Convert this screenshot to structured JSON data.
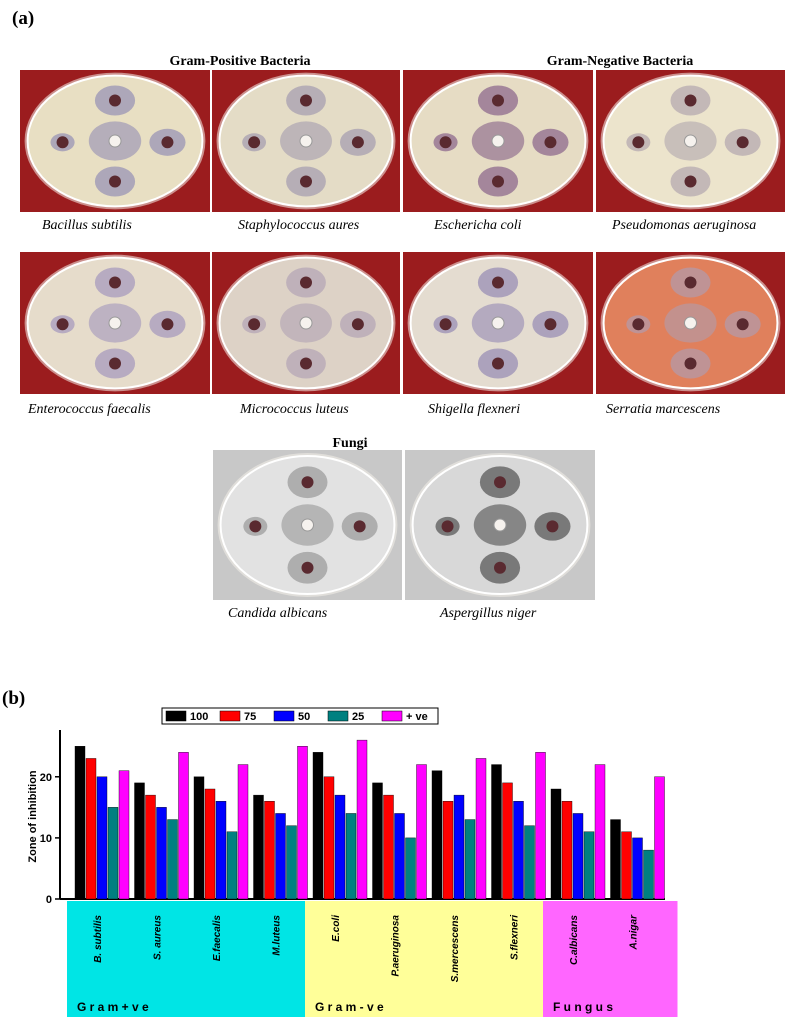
{
  "panel_a_label": "(a)",
  "panel_b_label": "(b)",
  "group_titles": {
    "gram_positive": "Gram-Positive Bacteria",
    "gram_negative": "Gram-Negative Bacteria",
    "fungi": "Fungi"
  },
  "plates": [
    {
      "caption": "Bacillus subtilis",
      "agar": "#e8dfc3",
      "zone": "#9a94b5"
    },
    {
      "caption": "Staphylococcus aures",
      "agar": "#e4dcc6",
      "zone": "#a79fb0"
    },
    {
      "caption": "Eschericha coli",
      "agar": "#e6dcc4",
      "zone": "#8e6a8e"
    },
    {
      "caption": "Pseudomonas aeruginosa",
      "agar": "#ece4cc",
      "zone": "#b5aab0"
    },
    {
      "caption": "Enterococcus faecalis",
      "agar": "#e6dccb",
      "zone": "#a79bbd"
    },
    {
      "caption": "Micrococcus luteus",
      "agar": "#ddd2c6",
      "zone": "#b4a6b5"
    },
    {
      "caption": "Shigella flexneri",
      "agar": "#e4dcd0",
      "zone": "#9a8fb5"
    },
    {
      "caption": "Serratia marcescens",
      "agar": "#e0805c",
      "zone": "#b49aa8"
    },
    {
      "caption": "Candida albicans",
      "agar": "#e2e2e2",
      "zone": "#9c9c9c"
    },
    {
      "caption": "Aspergillus niger",
      "agar": "#d8d8d8",
      "zone": "#5a5a5a"
    }
  ],
  "chart_data": {
    "type": "bar",
    "ylabel": "Zone of inhibition",
    "ylim": [
      0,
      27
    ],
    "yticks": [
      0,
      10,
      20
    ],
    "categories": [
      "B. subtilis",
      "S. aureus",
      "E.faecalis",
      "M.luteus",
      "E.coli",
      "P.aeruginosa",
      "S.mercescens",
      "S.flexneri",
      "C.albicans",
      "A.nigar"
    ],
    "series": [
      {
        "name": "100",
        "color": "#000000",
        "values": [
          25,
          19,
          20,
          17,
          24,
          19,
          21,
          22,
          18,
          13
        ]
      },
      {
        "name": "75",
        "color": "#ff0000",
        "values": [
          23,
          17,
          18,
          16,
          20,
          17,
          16,
          19,
          16,
          11
        ]
      },
      {
        "name": "50",
        "color": "#0000ff",
        "values": [
          20,
          15,
          16,
          14,
          17,
          14,
          17,
          16,
          14,
          10
        ]
      },
      {
        "name": "25",
        "color": "#008080",
        "values": [
          15,
          13,
          11,
          12,
          14,
          10,
          13,
          12,
          11,
          8
        ]
      },
      {
        "name": "+ ve",
        "color": "#ff00ff",
        "values": [
          21,
          24,
          22,
          25,
          26,
          22,
          23,
          24,
          22,
          20
        ]
      }
    ],
    "legend_position": "top",
    "groups": [
      {
        "label": "G r a m   + v e",
        "color": "#00e5e5",
        "categories": [
          0,
          1,
          2,
          3
        ]
      },
      {
        "label": "G r a m   - v e",
        "color": "#ffff99",
        "categories": [
          4,
          5,
          6,
          7
        ]
      },
      {
        "label": "F u n g u s",
        "color": "#ff66ff",
        "categories": [
          8,
          9
        ]
      }
    ]
  }
}
